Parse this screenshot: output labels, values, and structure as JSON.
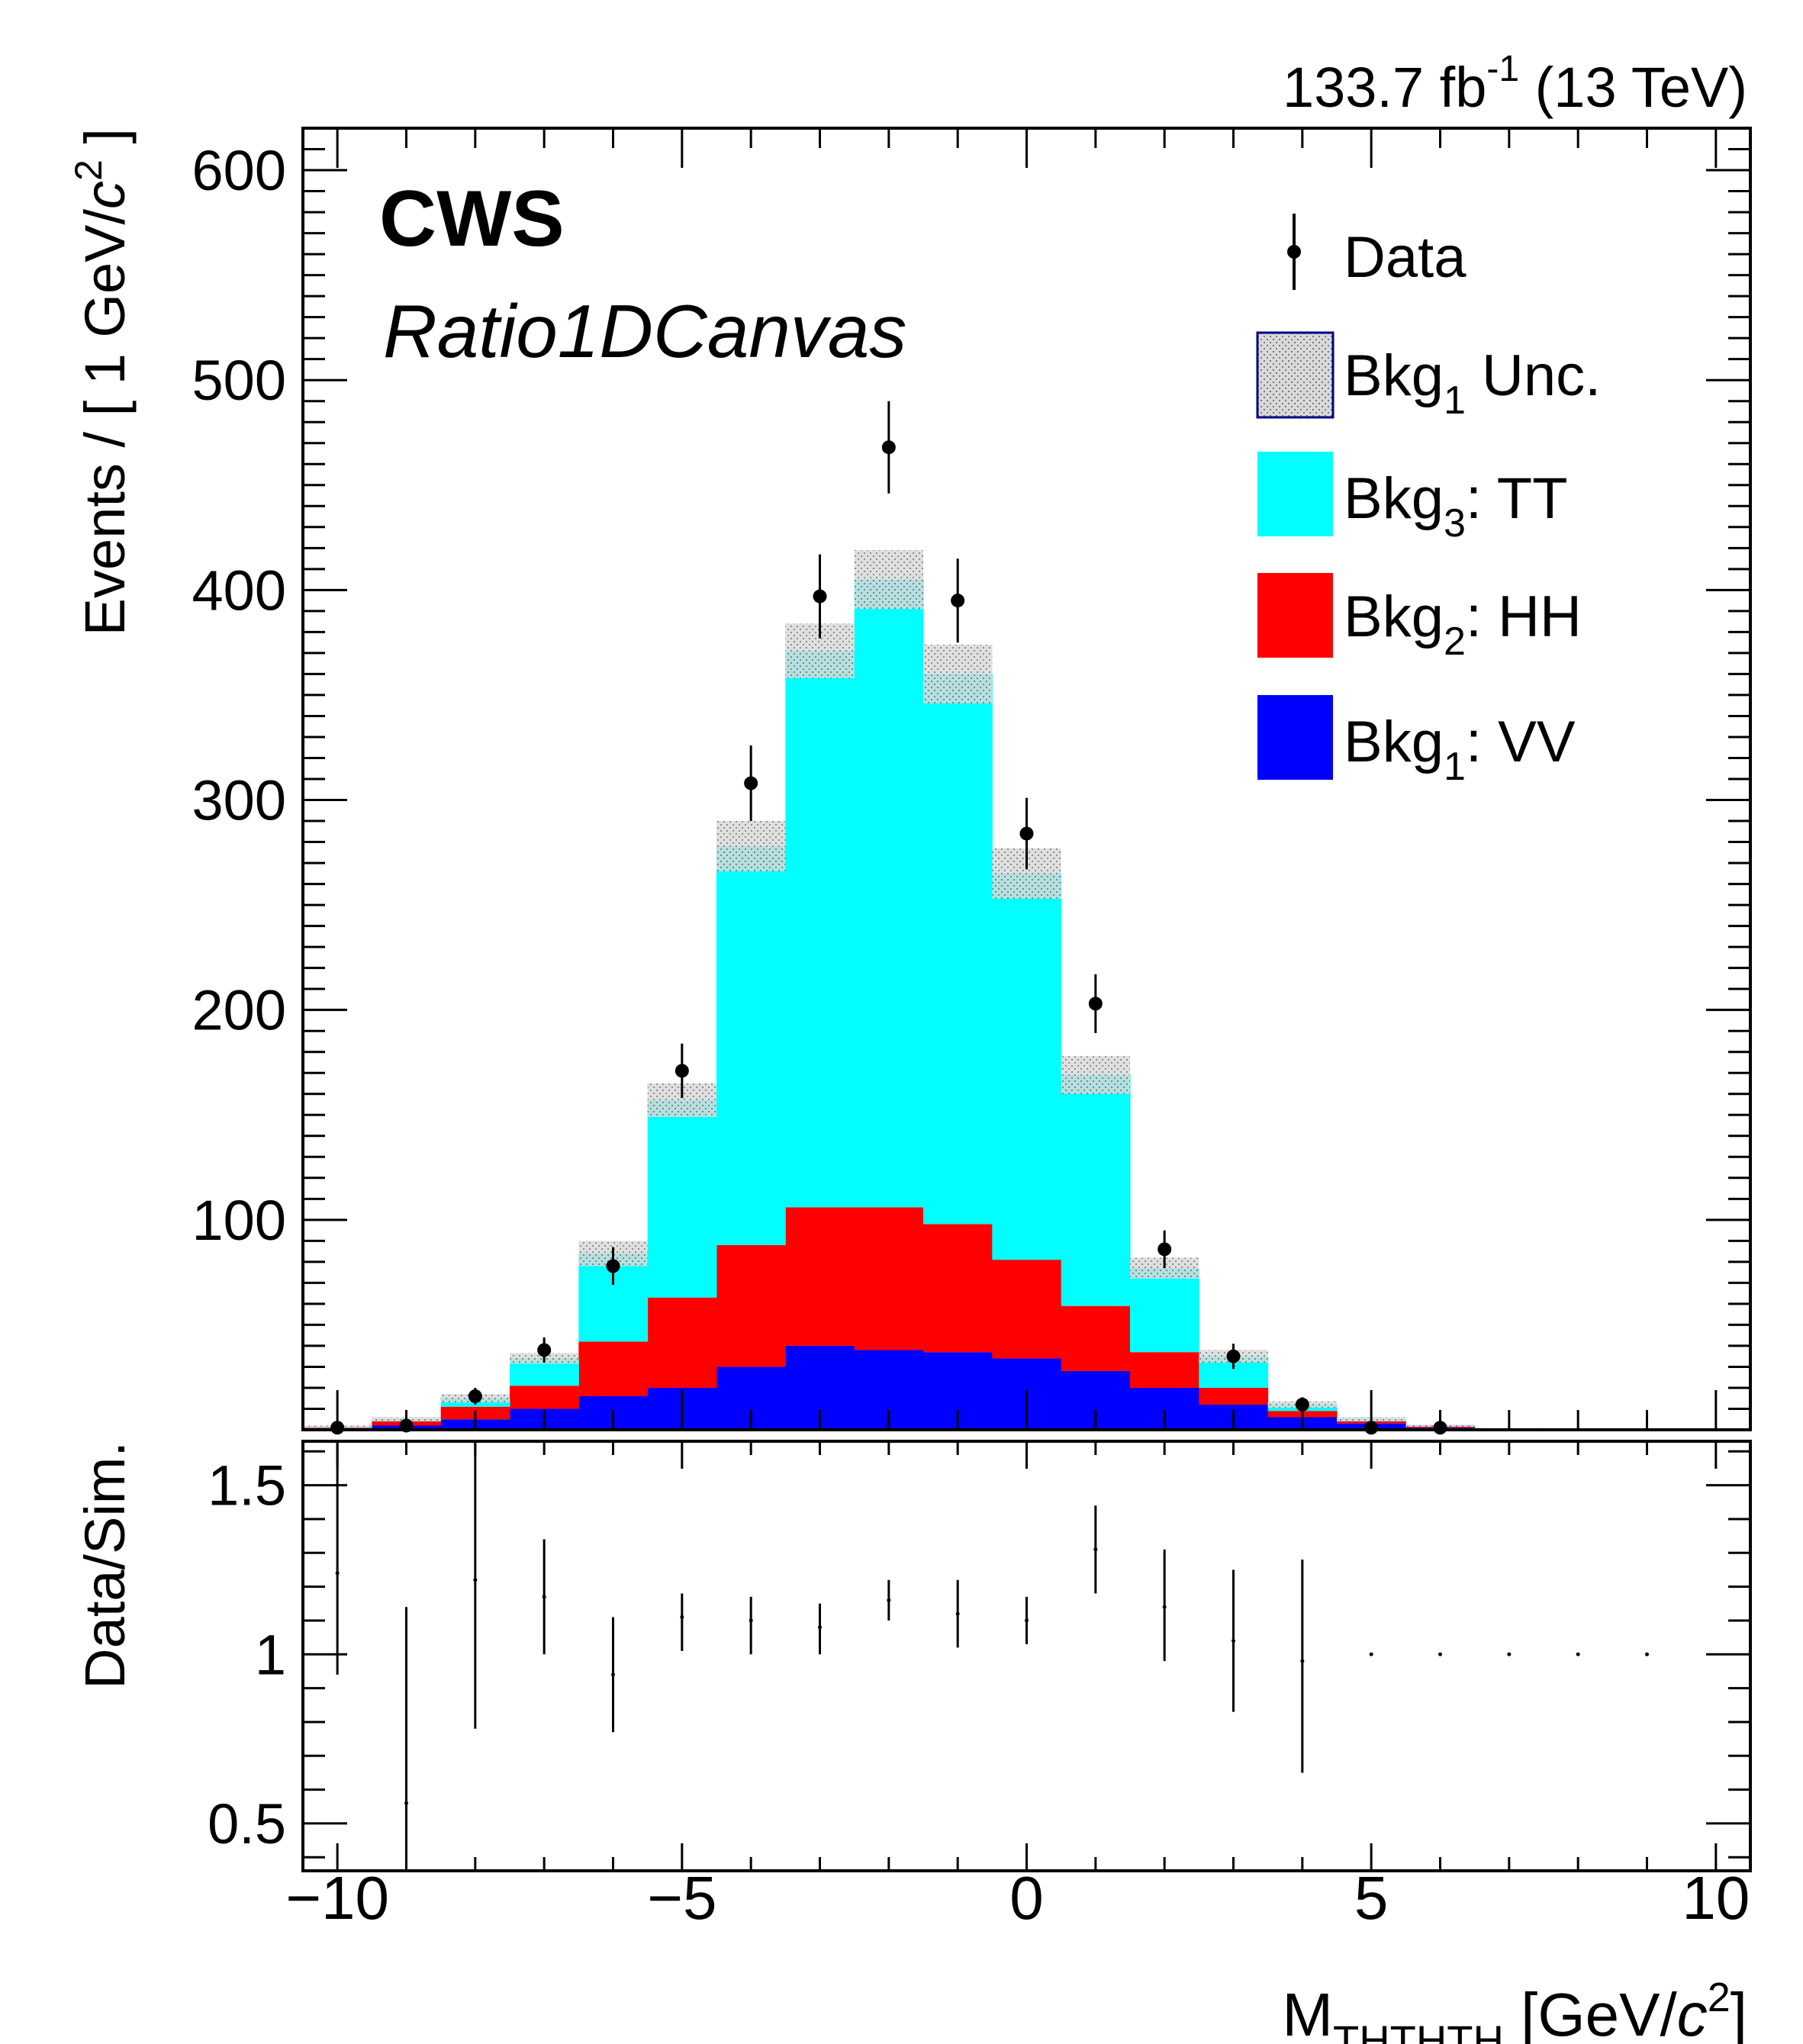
{
  "header": {
    "lumi_value": "133.7 fb",
    "lumi_exp": "-1",
    "energy": "(13 TeV)",
    "experiment": "CWS",
    "canvas_label": "Ratio1DCanvas"
  },
  "chart_data": [
    {
      "type": "bar",
      "subtype": "stacked-histogram",
      "ylabel_main": "Events / [ 1 GeV/",
      "ylabel_c": "c",
      "ylabel_sup": "2",
      "ylabel_end": " ]",
      "xlim": [
        -10.5,
        10.5
      ],
      "ylim": [
        0,
        620
      ],
      "yticks": [
        100,
        200,
        300,
        400,
        500,
        600
      ],
      "bin_edges": [
        -10.5,
        -9.5,
        -8.5,
        -7.5,
        -6.5,
        -5.5,
        -4.5,
        -3.5,
        -2.5,
        -1.5,
        -0.5,
        0.5,
        1.5,
        2.5,
        3.5,
        4.5,
        5.5,
        6.5,
        7.5,
        8.5,
        9.5,
        10.5
      ],
      "bin_centers": [
        -10,
        -9,
        -8,
        -7,
        -6,
        -5,
        -4,
        -3,
        -2,
        -1,
        0,
        1,
        2,
        3,
        4,
        5,
        6,
        7,
        8,
        9,
        10
      ],
      "series": [
        {
          "key": "vv",
          "name_base": "Bkg",
          "name_sub": "1",
          "name_rest": ": VV",
          "color": "#0000ff",
          "values": [
            0.5,
            2,
            5,
            10,
            16,
            20,
            30,
            40,
            38,
            37,
            34,
            28,
            20,
            12,
            6,
            3,
            1,
            0.3,
            0.1,
            0,
            0
          ]
        },
        {
          "key": "hh",
          "name_base": "Bkg",
          "name_sub": "2",
          "name_rest": ": HH",
          "color": "#ff0000",
          "values": [
            0.5,
            2,
            6,
            11,
            26,
            43,
            58,
            66,
            68,
            61,
            47,
            31,
            17,
            8,
            3,
            1,
            0.5,
            0.2,
            0,
            0,
            0
          ]
        },
        {
          "key": "tt",
          "name_base": "Bkg",
          "name_sub": "3",
          "name_rest": ": TT",
          "color": "#00ffff",
          "values": [
            0.5,
            1,
            4,
            13,
            42,
            94,
            190,
            265,
            299,
            262,
            184,
            110,
            40,
            15,
            3,
            1,
            0.5,
            0.2,
            0,
            0,
            0
          ]
        }
      ],
      "uncertainty": {
        "name_base": "Bkg",
        "name_sub": "1",
        "name_rest": " Unc.",
        "fill": "#a9a9a9",
        "border": "#00008b",
        "values": [
          0.5,
          1,
          2,
          2.5,
          6,
          8,
          12,
          13,
          14,
          14,
          12,
          9,
          5,
          3,
          1.5,
          1,
          0.5,
          0.2,
          0,
          0,
          0
        ]
      },
      "data": {
        "name": "Data",
        "color": "#000000",
        "x": [
          -10,
          -9,
          -8,
          -7,
          -6,
          -5,
          -4,
          -3,
          -2,
          -1,
          0,
          1,
          2,
          3,
          4,
          5,
          6
        ],
        "y": [
          1,
          2,
          16,
          38,
          78,
          171,
          308,
          397,
          468,
          395,
          284,
          203,
          86,
          35,
          12,
          1,
          1
        ],
        "err": [
          1,
          1.5,
          4,
          6,
          9,
          13,
          18,
          20,
          22,
          20,
          17,
          14,
          9,
          6,
          3.5,
          1,
          1
        ]
      },
      "legend_position": "top-right"
    },
    {
      "type": "scatter",
      "subtype": "ratio",
      "ylabel": "Data/Sim.",
      "xlabel_base": "M",
      "xlabel_sub": "THTHTH",
      "xlabel_unit": " [GeV/",
      "xlabel_c": "c",
      "xlabel_sup": "2",
      "xlabel_end": "]",
      "xlim": [
        -10.5,
        10.5
      ],
      "ylim": [
        0.36,
        1.63
      ],
      "yticks": [
        0.5,
        1,
        1.5
      ],
      "xticks": [
        -10,
        -5,
        0,
        5,
        10
      ],
      "xtick_labels": [
        "−10",
        "−5",
        "0",
        "5",
        "10"
      ],
      "x": [
        -10,
        -9,
        -8,
        -7,
        -6,
        -5,
        -4,
        -3,
        -2,
        -1,
        0,
        1,
        2,
        3,
        4,
        5,
        6,
        7,
        8,
        9
      ],
      "y": [
        1.24,
        0.56,
        1.22,
        1.17,
        0.94,
        1.11,
        1.1,
        1.08,
        1.16,
        1.12,
        1.1,
        1.31,
        1.14,
        1.04,
        0.98,
        1.0,
        1.0,
        1.0,
        1.0,
        1.0
      ],
      "err_low": [
        0.3,
        0.4,
        0.44,
        0.17,
        0.17,
        0.1,
        0.1,
        0.08,
        0.06,
        0.1,
        0.07,
        0.13,
        0.16,
        0.21,
        0.33,
        0,
        0,
        0,
        0,
        0
      ],
      "err_high": [
        0.4,
        0.58,
        0.44,
        0.17,
        0.17,
        0.07,
        0.07,
        0.07,
        0.06,
        0.1,
        0.07,
        0.13,
        0.17,
        0.21,
        0.3,
        0,
        0,
        0,
        0,
        0
      ]
    }
  ]
}
